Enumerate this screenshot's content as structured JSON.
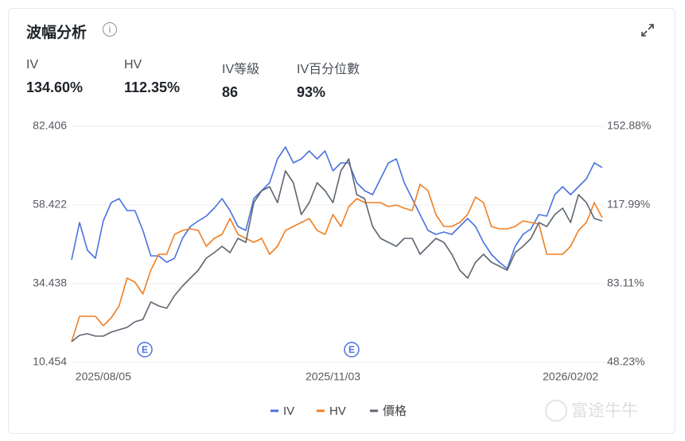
{
  "header": {
    "title": "波幅分析"
  },
  "stats": [
    {
      "label": "IV",
      "value": "134.60%"
    },
    {
      "label": "HV",
      "value": "112.35%"
    },
    {
      "label": "IV等級",
      "value": "86"
    },
    {
      "label": "IV百分位數",
      "value": "93%"
    }
  ],
  "watermark": "富途牛牛",
  "chart_data": {
    "type": "line",
    "categories": [
      null,
      null,
      null,
      null,
      "2025/08/05",
      null,
      null,
      null,
      null,
      null,
      null,
      null,
      null,
      null,
      null,
      null,
      null,
      null,
      null,
      null,
      null,
      null,
      null,
      null,
      null,
      null,
      null,
      null,
      null,
      null,
      null,
      null,
      null,
      "2025/11/03",
      null,
      null,
      null,
      null,
      null,
      null,
      null,
      null,
      null,
      null,
      null,
      null,
      null,
      null,
      null,
      null,
      null,
      null,
      null,
      null,
      null,
      null,
      null,
      null,
      null,
      null,
      null,
      null,
      null,
      "2026/02/02",
      null,
      null,
      null,
      null
    ],
    "series": [
      {
        "name": "IV",
        "color": "#4a72e0",
        "axis": "y2",
        "values": [
          93.68,
          110.25,
          97.91,
          94.39,
          110.95,
          119.05,
          120.82,
          115.53,
          115.53,
          106.72,
          95.45,
          95.45,
          92.63,
          94.39,
          103.2,
          108.48,
          110.95,
          113.06,
          116.59,
          120.82,
          115.53,
          108.48,
          106.72,
          120.82,
          124.34,
          127.86,
          138.43,
          143.72,
          136.67,
          138.43,
          141.96,
          138.43,
          141.96,
          133.15,
          136.67,
          136.67,
          127.86,
          124.34,
          122.58,
          129.63,
          136.67,
          138.43,
          127.86,
          120.82,
          113.77,
          106.72,
          104.96,
          106.02,
          104.96,
          108.48,
          112.01,
          108.48,
          101.44,
          96.15,
          92.63,
          89.81,
          99.67,
          104.96,
          107.43,
          113.77,
          113.06,
          122.58,
          126.1,
          122.58,
          126.1,
          129.63,
          136.67,
          134.6
        ]
      },
      {
        "name": "HV",
        "color": "#f07f22",
        "axis": "y2",
        "values": [
          57.39,
          68.67,
          68.67,
          68.67,
          64.44,
          67.96,
          73.25,
          85.58,
          83.82,
          78.53,
          89.1,
          96.15,
          96.15,
          104.96,
          106.72,
          107.43,
          106.72,
          99.67,
          103.2,
          104.96,
          112.01,
          104.96,
          103.2,
          101.44,
          103.2,
          96.15,
          99.67,
          106.72,
          108.48,
          110.25,
          112.01,
          106.72,
          104.96,
          113.77,
          108.48,
          117.29,
          120.82,
          119.05,
          119.05,
          119.05,
          117.29,
          118.0,
          116.59,
          115.53,
          127.16,
          124.34,
          113.77,
          108.48,
          108.48,
          110.25,
          113.77,
          121.52,
          119.05,
          108.48,
          107.43,
          107.43,
          108.48,
          110.95,
          110.25,
          109.54,
          96.15,
          96.15,
          96.15,
          99.67,
          106.72,
          110.25,
          119.05,
          112.35
        ]
      },
      {
        "name": "價格",
        "color": "#5f6670",
        "values": [
          16.75,
          18.69,
          19.17,
          18.45,
          18.45,
          19.66,
          20.39,
          21.11,
          22.81,
          23.54,
          28.87,
          27.65,
          26.93,
          30.8,
          33.71,
          36.13,
          38.56,
          42.19,
          43.89,
          45.82,
          43.89,
          48.25,
          47.04,
          59.15,
          62.78,
          63.99,
          59.15,
          68.84,
          65.21,
          55.51,
          59.15,
          65.21,
          62.78,
          59.15,
          68.84,
          72.47,
          61.57,
          60.36,
          51.88,
          48.25,
          47.04,
          45.82,
          48.25,
          48.25,
          43.4,
          45.82,
          48.25,
          47.04,
          43.4,
          38.56,
          36.13,
          40.98,
          43.4,
          40.98,
          39.77,
          38.56,
          43.89,
          45.82,
          48.25,
          53.09,
          51.88,
          55.51,
          57.45,
          53.09,
          61.57,
          59.15,
          54.3,
          53.58
        ]
      }
    ],
    "ylim": [
      10.454,
      82.406
    ],
    "yticks": [
      10.454,
      34.438,
      58.422,
      82.406
    ],
    "y2lim": [
      48.23,
      152.88
    ],
    "y2ticks": [
      {
        "value": 48.23,
        "label": "48.23%"
      },
      {
        "value": 83.11,
        "label": "83.11%"
      },
      {
        "value": 117.99,
        "label": "117.99%"
      },
      {
        "value": 152.88,
        "label": "152.88%"
      }
    ],
    "grid": true,
    "legend": "bottom",
    "events": [
      "E",
      "E"
    ]
  }
}
